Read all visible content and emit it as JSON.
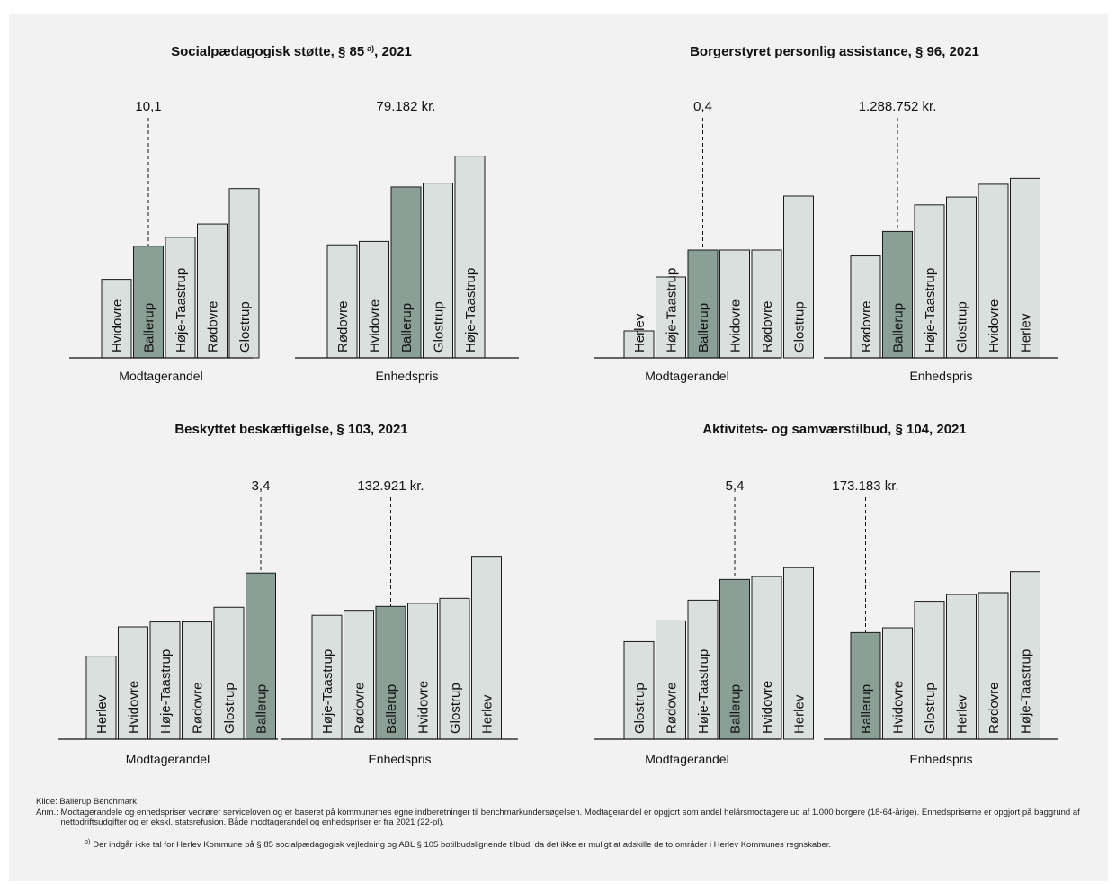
{
  "colors": {
    "highlight": "#8aa096",
    "bar": "#d9e0de",
    "stroke": "#1a1a1a",
    "panel": "#f2f2f2"
  },
  "chart_data": [
    {
      "type": "bar",
      "title": "Socialpædagogisk støtte, § 85",
      "title_sup": "a)",
      "title_suffix": ", 2021",
      "highlight": "Ballerup",
      "groups": [
        {
          "name": "Modtagerandel",
          "label": "10,1",
          "categories": [
            "Hvidovre",
            "Ballerup",
            "Høje-Taastrup",
            "Rødovre",
            "Glostrup"
          ],
          "values": [
            7.1,
            10.1,
            10.9,
            12.1,
            15.3
          ],
          "ylim": [
            0,
            19.5
          ]
        },
        {
          "name": "Enhedspris",
          "label": "79.182 kr.",
          "categories": [
            "Rødovre",
            "Hvidovre",
            "Ballerup",
            "Glostrup",
            "Høje-Taastrup"
          ],
          "values": [
            52400,
            54000,
            79182,
            81000,
            93500
          ],
          "ylim": [
            0,
            100000
          ]
        }
      ]
    },
    {
      "type": "bar",
      "title": "Borgerstyret personlig assistance, § 96, 2021",
      "highlight": "Ballerup",
      "groups": [
        {
          "name": "Modtagerandel",
          "label": "0,4",
          "categories": [
            "Herlev",
            "Høje-Taastrup",
            "Ballerup",
            "Hvidovre",
            "Rødovre",
            "Glostrup"
          ],
          "values": [
            0.1,
            0.3,
            0.4,
            0.4,
            0.4,
            0.6
          ],
          "ylim": [
            0,
            0.8
          ]
        },
        {
          "name": "Enhedspris",
          "label": "1.288.752 kr.",
          "categories": [
            "Rødovre",
            "Ballerup",
            "Høje-Taastrup",
            "Glostrup",
            "Hvidovre",
            "Herlev"
          ],
          "values": [
            1040000,
            1288752,
            1560000,
            1640000,
            1770000,
            1830000
          ],
          "ylim": [
            0,
            2200000
          ]
        }
      ]
    },
    {
      "type": "bar",
      "title": "Beskyttet beskæftigelse, § 103, 2021",
      "highlight": "Ballerup",
      "groups": [
        {
          "name": "Modtagerandel",
          "label": "3,4",
          "categories": [
            "Herlev",
            "Hvidovre",
            "Høje-Taastrup",
            "Rødovre",
            "Glostrup",
            "Ballerup"
          ],
          "values": [
            1.7,
            2.3,
            2.4,
            2.4,
            2.7,
            3.4
          ],
          "ylim": [
            0,
            4.6
          ]
        },
        {
          "name": "Enhedspris",
          "label": "132.921 kr.",
          "categories": [
            "Høje-Taastrup",
            "Rødovre",
            "Ballerup",
            "Hvidovre",
            "Glostrup",
            "Herlev"
          ],
          "values": [
            124000,
            129000,
            132921,
            136000,
            141000,
            183000
          ],
          "ylim": [
            0,
            225000
          ]
        }
      ]
    },
    {
      "type": "bar",
      "title": "Aktivitets- og samværstilbud, § 104, 2021",
      "highlight": "Ballerup",
      "groups": [
        {
          "name": "Modtagerandel",
          "label": "5,4",
          "categories": [
            "Glostrup",
            "Rødovre",
            "Høje-Taastrup",
            "Ballerup",
            "Hvidovre",
            "Herlev"
          ],
          "values": [
            3.3,
            4.0,
            4.7,
            5.4,
            5.5,
            5.8
          ],
          "ylim": [
            0,
            7.6
          ]
        },
        {
          "name": "Enhedspris",
          "label": "173.183 kr.",
          "categories": [
            "Ballerup",
            "Hvidovre",
            "Glostrup",
            "Herlev",
            "Rødovre",
            "Høje-Taastrup"
          ],
          "values": [
            173183,
            181000,
            224000,
            235000,
            238000,
            272000
          ],
          "ylim": [
            0,
            365000
          ]
        }
      ]
    }
  ],
  "source": {
    "label": "Kilde:",
    "text": "Ballerup Benchmark."
  },
  "note": {
    "label": "Anm.:",
    "text": "Modtagerandele og enhedspriser vedrører serviceloven og er baseret på kommunernes egne indberetninger til benchmarkundersøgelsen. Modtagerandel er opgjort som andel helårsmodtagere ud af 1.000 borgere (18-64-årige). Enhedspriserne er opgjort på baggrund af nettodriftsudgifter og er ekskl. statsrefusion. Både modtagerandel og enhedspriser er fra 2021 (22-pl)."
  },
  "footnote": {
    "marker": "b)",
    "text": "Der indgår ikke tal for Herlev Kommune på § 85 socialpædagogisk vejledning og ABL § 105 botilbudslignende tilbud, da det ikke er muligt at adskille de to områder i Herlev Kommunes regnskaber."
  }
}
